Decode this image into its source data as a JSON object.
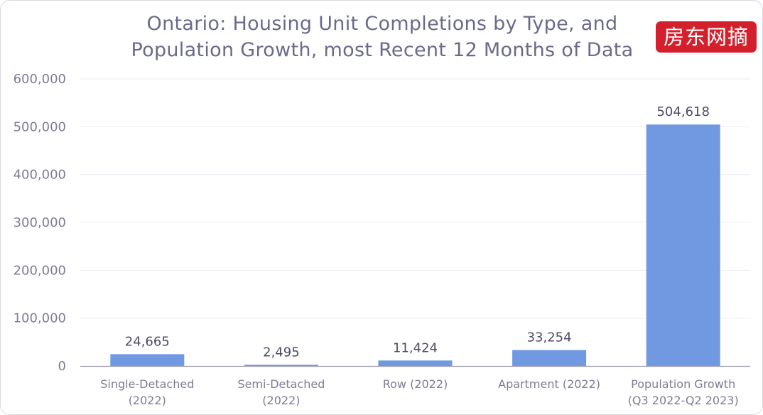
{
  "title": {
    "line1": "Ontario: Housing Unit Completions by Type, and",
    "line2": "Population Growth, most Recent 12 Months of Data"
  },
  "watermark": "房东网摘",
  "colors": {
    "bar": "#7199e2",
    "grid": "#ececf2",
    "axis": "#9a9aae",
    "text": "#7c7c94",
    "title": "#6a6a8a",
    "watermark_bg": "#d4202d"
  },
  "chart_data": {
    "type": "bar",
    "title": "Ontario: Housing Unit Completions by Type, and Population Growth, most Recent 12 Months of Data",
    "xlabel": "",
    "ylabel": "",
    "categories": [
      [
        "Single-Detached",
        "(2022)"
      ],
      [
        "Semi-Detached",
        "(2022)"
      ],
      [
        "Row (2022)"
      ],
      [
        "Apartment (2022)"
      ],
      [
        "Population Growth",
        "(Q3 2022-Q2 2023)"
      ]
    ],
    "values": [
      24665,
      2495,
      11424,
      33254,
      504618
    ],
    "data_labels": [
      "24,665",
      "2,495",
      "11,424",
      "33,254",
      "504,618"
    ],
    "ylim": [
      0,
      600000
    ],
    "yticks": [
      0,
      100000,
      200000,
      300000,
      400000,
      500000,
      600000
    ],
    "ytick_labels": [
      "0",
      "100,000",
      "200,000",
      "300,000",
      "400,000",
      "500,000",
      "600,000"
    ],
    "grid": true,
    "legend": "none"
  }
}
